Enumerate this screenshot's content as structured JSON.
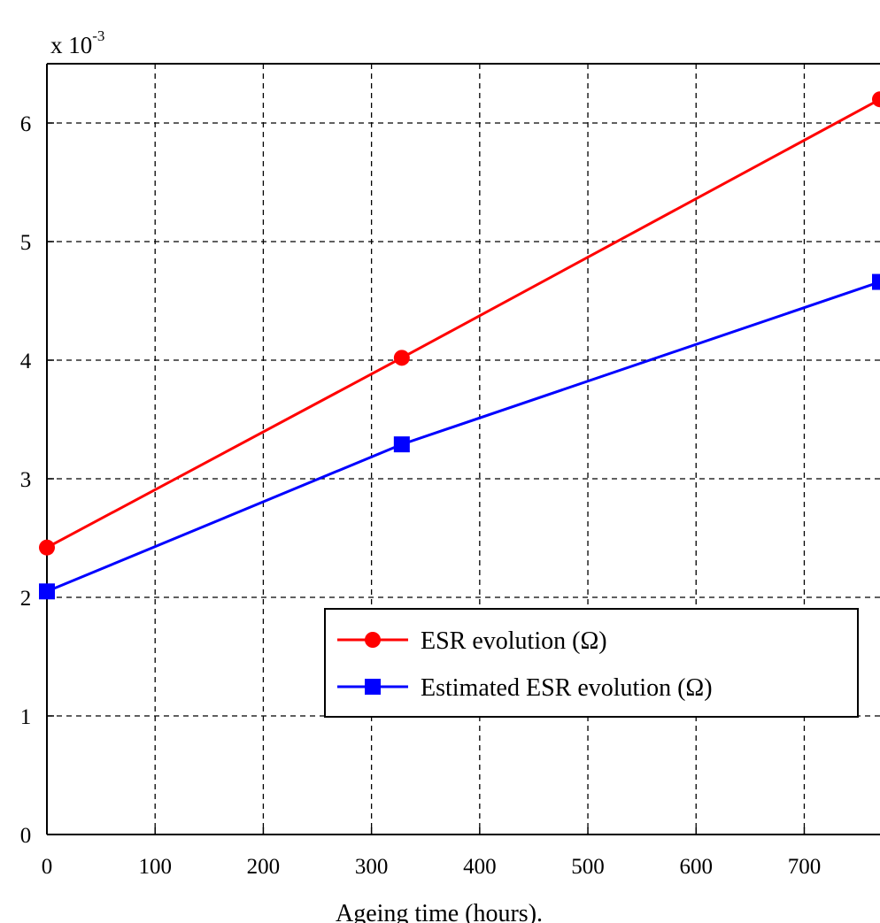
{
  "chart_data": {
    "type": "line",
    "title": "",
    "xlabel": "Ageing time (hours).",
    "ylabel": "",
    "y_multiplier": {
      "base": "x 10",
      "exponent": "-3"
    },
    "xlim": [
      0,
      770
    ],
    "ylim": [
      0,
      6.5
    ],
    "x_ticks": [
      "0",
      "100",
      "200",
      "300",
      "400",
      "500",
      "600",
      "700"
    ],
    "y_ticks": [
      "0",
      "1",
      "2",
      "3",
      "4",
      "5",
      "6"
    ],
    "x_tick_values": [
      0,
      100,
      200,
      300,
      400,
      500,
      600,
      700
    ],
    "y_tick_values": [
      0,
      1,
      2,
      3,
      4,
      5,
      6
    ],
    "grid": true,
    "legend_position": "lower-right",
    "series": [
      {
        "name": "ESR evolution (Ω)",
        "color": "#ff0000",
        "marker": "circle",
        "x": [
          0,
          328,
          770
        ],
        "y": [
          2.42,
          4.02,
          6.2
        ]
      },
      {
        "name": "Estimated ESR evolution (Ω)",
        "color": "#0000ff",
        "marker": "square",
        "x": [
          0,
          328,
          770
        ],
        "y": [
          2.05,
          3.29,
          4.66
        ]
      }
    ]
  }
}
